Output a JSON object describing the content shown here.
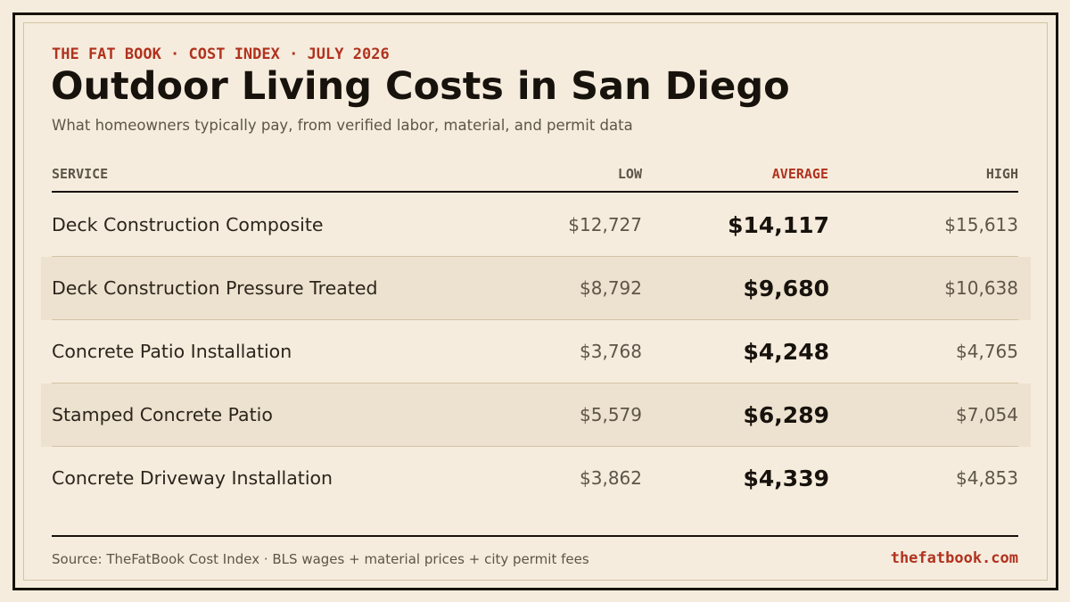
{
  "header": {
    "kicker": "THE FAT BOOK · COST INDEX · JULY 2026",
    "title": "Outdoor Living Costs in San Diego",
    "subtitle": "What homeowners typically pay, from verified labor, material, and permit data"
  },
  "chart_data": {
    "type": "table",
    "columns": [
      "SERVICE",
      "LOW",
      "AVERAGE",
      "HIGH"
    ],
    "rows": [
      {
        "service": "Deck Construction Composite",
        "low": "$12,727",
        "average": "$14,117",
        "high": "$15,613"
      },
      {
        "service": "Deck Construction Pressure Treated",
        "low": "$8,792",
        "average": "$9,680",
        "high": "$10,638"
      },
      {
        "service": "Concrete Patio Installation",
        "low": "$3,768",
        "average": "$4,248",
        "high": "$4,765"
      },
      {
        "service": "Stamped Concrete Patio",
        "low": "$5,579",
        "average": "$6,289",
        "high": "$7,054"
      },
      {
        "service": "Concrete Driveway Installation",
        "low": "$3,862",
        "average": "$4,339",
        "high": "$4,853"
      }
    ]
  },
  "footer": {
    "source": "Source: TheFatBook Cost Index · BLS wages + material prices + city permit fees",
    "site": "thefatbook.com"
  },
  "colors": {
    "background": "#f5ecdd",
    "accent": "#b1321f",
    "ink": "#17120c",
    "row_alt": "#ede2cf"
  }
}
